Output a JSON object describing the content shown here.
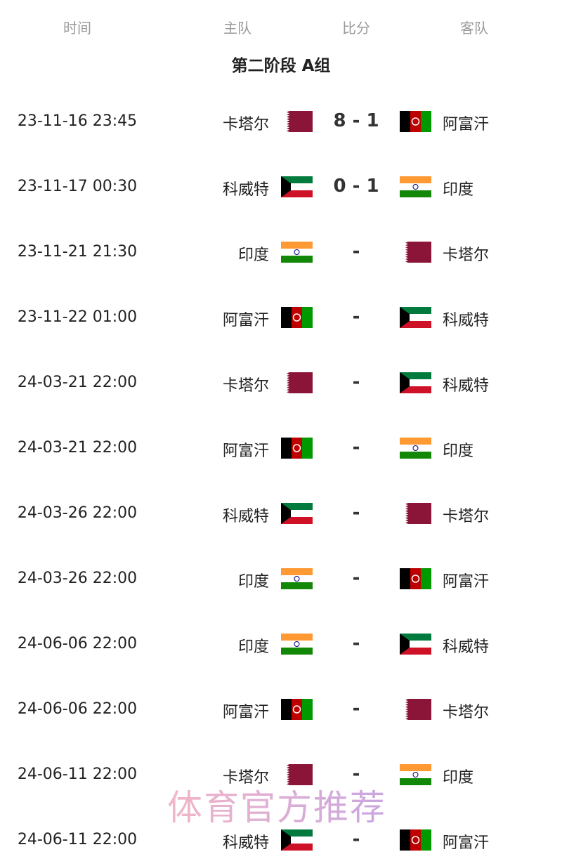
{
  "header": {
    "time": "时间",
    "home": "主队",
    "score": "比分",
    "away": "客队"
  },
  "group_title": "第二阶段 A组",
  "flag_colors": {
    "qatar": "#8a1538",
    "afghanistan": [
      "#000000",
      "#be0000",
      "#009a00"
    ],
    "kuwait": [
      "#007a3d",
      "#ffffff",
      "#ce1126",
      "#000000"
    ],
    "india": [
      "#ff9933",
      "#ffffff",
      "#138808"
    ]
  },
  "matches": [
    {
      "time": "23-11-16 23:45",
      "home": "卡塔尔",
      "home_flag": "qatar",
      "score": "8 - 1",
      "away": "阿富汗",
      "away_flag": "afghanistan"
    },
    {
      "time": "23-11-17 00:30",
      "home": "科威特",
      "home_flag": "kuwait",
      "score": "0 - 1",
      "away": "印度",
      "away_flag": "india"
    },
    {
      "time": "23-11-21 21:30",
      "home": "印度",
      "home_flag": "india",
      "score": "-",
      "away": "卡塔尔",
      "away_flag": "qatar"
    },
    {
      "time": "23-11-22 01:00",
      "home": "阿富汗",
      "home_flag": "afghanistan",
      "score": "-",
      "away": "科威特",
      "away_flag": "kuwait"
    },
    {
      "time": "24-03-21 22:00",
      "home": "卡塔尔",
      "home_flag": "qatar",
      "score": "-",
      "away": "科威特",
      "away_flag": "kuwait"
    },
    {
      "time": "24-03-21 22:00",
      "home": "阿富汗",
      "home_flag": "afghanistan",
      "score": "-",
      "away": "印度",
      "away_flag": "india"
    },
    {
      "time": "24-03-26 22:00",
      "home": "科威特",
      "home_flag": "kuwait",
      "score": "-",
      "away": "卡塔尔",
      "away_flag": "qatar"
    },
    {
      "time": "24-03-26 22:00",
      "home": "印度",
      "home_flag": "india",
      "score": "-",
      "away": "阿富汗",
      "away_flag": "afghanistan"
    },
    {
      "time": "24-06-06 22:00",
      "home": "印度",
      "home_flag": "india",
      "score": "-",
      "away": "科威特",
      "away_flag": "kuwait"
    },
    {
      "time": "24-06-06 22:00",
      "home": "阿富汗",
      "home_flag": "afghanistan",
      "score": "-",
      "away": "卡塔尔",
      "away_flag": "qatar"
    },
    {
      "time": "24-06-11 22:00",
      "home": "卡塔尔",
      "home_flag": "qatar",
      "score": "-",
      "away": "印度",
      "away_flag": "india"
    },
    {
      "time": "24-06-11 22:00",
      "home": "科威特",
      "home_flag": "kuwait",
      "score": "-",
      "away": "阿富汗",
      "away_flag": "afghanistan"
    }
  ],
  "watermark": "体育官方推荐"
}
